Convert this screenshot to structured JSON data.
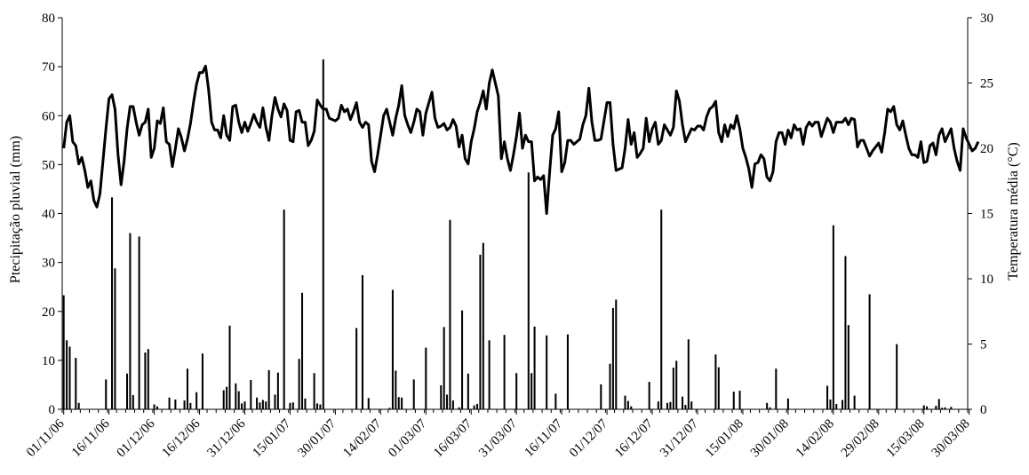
{
  "chart_data": {
    "type": "bar",
    "xlabel": "",
    "ylabel": "Ptecipitação pluvial (mm)",
    "y2label": "Temperatura média (°C)",
    "ylim": [
      0,
      80
    ],
    "y2lim": [
      0,
      30
    ],
    "yticks": [
      "0",
      "10",
      "20",
      "30",
      "40",
      "50",
      "60",
      "70",
      "80"
    ],
    "y2ticks": [
      "0",
      "5",
      "10",
      "15",
      "20",
      "25",
      "30"
    ],
    "x_tick_labels": [
      "01/11/06",
      "16/11/06",
      "01/12/06",
      "16/12/06",
      "31/12/06",
      "15/01/07",
      "30/01/07",
      "14/02/07",
      "01/03/07",
      "16/03/07",
      "31/03/07",
      "16/11/07",
      "01/12/07",
      "16/12/07",
      "31/12/07",
      "15/01/08",
      "30/01/08",
      "14/02/08",
      "29/02/08",
      "15/03/08",
      "30/03/08"
    ],
    "n_days": 300,
    "grid": false,
    "series": [
      {
        "kind": "bar",
        "axis": "left",
        "day_index": [
          0,
          1,
          2,
          4,
          5,
          14,
          16,
          17,
          21,
          22,
          23,
          25,
          27,
          28,
          30,
          31,
          35,
          37,
          40,
          41,
          42,
          44,
          46,
          53,
          54,
          55,
          57,
          58,
          59,
          60,
          62,
          64,
          65,
          66,
          67,
          68,
          70,
          71,
          73,
          75,
          76,
          78,
          79,
          80,
          83,
          84,
          85,
          86,
          97,
          99,
          101,
          108,
          109,
          110,
          111,
          112,
          116,
          120,
          125,
          126,
          127,
          128,
          129,
          131,
          132,
          134,
          136,
          137,
          138,
          139,
          141,
          146,
          150,
          154,
          155,
          156,
          160,
          163,
          167,
          178,
          181,
          182,
          183,
          186,
          187,
          188,
          194,
          197,
          198,
          200,
          201,
          202,
          203,
          205,
          206,
          207,
          208,
          216,
          217,
          222,
          224,
          233,
          234,
          236,
          240,
          253,
          254,
          255,
          256,
          258,
          259,
          260,
          262,
          267,
          276,
          285,
          286,
          289,
          290,
          291,
          292,
          294
        ],
        "values": [
          23.3,
          14.1,
          12.8,
          10.5,
          1.3,
          6.1,
          43.3,
          28.8,
          7.3,
          36.0,
          2.9,
          35.3,
          11.6,
          12.3,
          1.0,
          0.6,
          2.4,
          2.0,
          1.8,
          8.3,
          1.3,
          3.5,
          11.4,
          3.9,
          4.6,
          17.1,
          5.3,
          3.7,
          1.2,
          1.6,
          6.0,
          2.4,
          1.4,
          1.9,
          1.6,
          8.0,
          3.0,
          7.5,
          40.8,
          1.3,
          1.4,
          10.3,
          23.8,
          2.2,
          7.4,
          1.2,
          1.0,
          71.5,
          16.6,
          27.4,
          2.3,
          0.3,
          24.4,
          7.9,
          2.5,
          2.4,
          6.1,
          12.6,
          4.9,
          16.8,
          3.0,
          38.7,
          1.8,
          0.4,
          20.2,
          7.3,
          0.8,
          1.1,
          31.6,
          34.0,
          14.1,
          15.2,
          7.4,
          48.4,
          7.4,
          16.9,
          15.1,
          3.2,
          15.3,
          5.1,
          9.3,
          20.7,
          22.4,
          2.8,
          1.7,
          0.6,
          5.6,
          1.6,
          40.8,
          1.3,
          1.5,
          8.5,
          9.9,
          2.6,
          0.9,
          14.3,
          1.6,
          11.2,
          8.6,
          3.6,
          3.8,
          1.3,
          0.4,
          8.3,
          2.2,
          4.8,
          2.0,
          37.6,
          1.1,
          1.9,
          31.3,
          17.2,
          2.8,
          23.5,
          13.3,
          0.8,
          0.6,
          0.7,
          2.1,
          0.3,
          0.4,
          0.5
        ],
        "note_values": "mm"
      },
      {
        "kind": "line",
        "axis": "right",
        "day_index_start": 0,
        "values": [
          20,
          22,
          22.5,
          20.5,
          20.2,
          18.8,
          19.3,
          18.3,
          17.0,
          17.5,
          16.0,
          15.5,
          16.5,
          19.0,
          21.5,
          23.8,
          24.1,
          23.0,
          19.5,
          17.2,
          19.0,
          21.5,
          23.2,
          23.2,
          22.0,
          21.0,
          21.8,
          22.0,
          23.0,
          19.3,
          20.0,
          22.1,
          21.9,
          23.1,
          20.5,
          20.3,
          18.6,
          20.0,
          21.5,
          20.8,
          19.8,
          20.7,
          21.9,
          23.5,
          24.9,
          25.8,
          25.8,
          26.3,
          24.5,
          22.0,
          21.4,
          21.4,
          20.8,
          22.5,
          21.0,
          20.6,
          23.2,
          23.3,
          22.0,
          21.2,
          22.0,
          21.3,
          21.9,
          22.6,
          22.0,
          21.6,
          23.1,
          21.6,
          20.6,
          22.5,
          23.9,
          23.0,
          22.4,
          23.4,
          22.9,
          20.6,
          20.5,
          22.8,
          22.9,
          22.0,
          22.0,
          20.2,
          20.6,
          21.3,
          23.7,
          23.3,
          23.0,
          23.0,
          22.3,
          22.2,
          22.1,
          22.3,
          23.3,
          22.8,
          23.0,
          22.2,
          22.8,
          23.5,
          22.0,
          21.6,
          22.0,
          21.8,
          19.0,
          18.2,
          19.5,
          21.0,
          22.5,
          23.0,
          22.0,
          21.0,
          22.3,
          23.3,
          24.8,
          22.5,
          21.8,
          21.2,
          22.0,
          23.0,
          22.8,
          21.0,
          22.7,
          23.5,
          24.3,
          22.3,
          21.6,
          21.7,
          21.9,
          21.4,
          21.6,
          22.2,
          21.7,
          20.1,
          21.0,
          19.2,
          18.8,
          20.5,
          21.5,
          22.8,
          23.5,
          24.4,
          23.0,
          25.0,
          26.0,
          25.0,
          24.0,
          19.2,
          20.5,
          19.2,
          18.3,
          19.5,
          20.9,
          22.7,
          20.0,
          21.0,
          20.5,
          20.5,
          17.5,
          17.8,
          17.6,
          17.9,
          15.0,
          18.2,
          21.0,
          21.5,
          22.8,
          18.2,
          18.9,
          20.6,
          20.6,
          20.3,
          20.5,
          20.7,
          21.8,
          22.5,
          24.6,
          22.0,
          20.6,
          20.6,
          20.7,
          22.1,
          23.5,
          23.5,
          20.3,
          18.3,
          18.4,
          18.5,
          20.0,
          22.2,
          20.3,
          21.2,
          19.3,
          19.6,
          20.0,
          22.3,
          20.5,
          21.5,
          22.0,
          20.3,
          20.6,
          21.8,
          21.4,
          21.0,
          21.6,
          24.4,
          23.6,
          21.8,
          20.5,
          21.0,
          21.5,
          21.4,
          21.7,
          21.7,
          21.4,
          22.4,
          23.0,
          23.2,
          23.6,
          21.2,
          20.5,
          21.8,
          20.9,
          21.8,
          21.5,
          22.5,
          21.5,
          20.0,
          19.3,
          18.4,
          17.0,
          18.8,
          18.9,
          19.5,
          19.2,
          17.8,
          17.5,
          18.2,
          20.5,
          21.2,
          21.2,
          20.3,
          21.4,
          20.8,
          21.8,
          21.4,
          21.5,
          20.3,
          21.6,
          22.0,
          21.7,
          22.0,
          22.0,
          20.9,
          21.6,
          22.3,
          22.0,
          21.2,
          22.0,
          22.0,
          22.0,
          22.3,
          21.8,
          22.3,
          22.2,
          20.1,
          20.6,
          20.6,
          20.0,
          19.4,
          19.8,
          20.1,
          20.4,
          19.7,
          21.2,
          23.0,
          22.8,
          23.2,
          21.8,
          21.4,
          22.1,
          21.0,
          20.0,
          19.5,
          19.5,
          19.3,
          20.5,
          18.9,
          19.0,
          20.2,
          20.4,
          19.5,
          21.0,
          21.5,
          20.5,
          21.0,
          21.5,
          20.0,
          19.0,
          18.3,
          21.5,
          20.8,
          20.3,
          19.8,
          20.0,
          20.5
        ]
      }
    ]
  }
}
